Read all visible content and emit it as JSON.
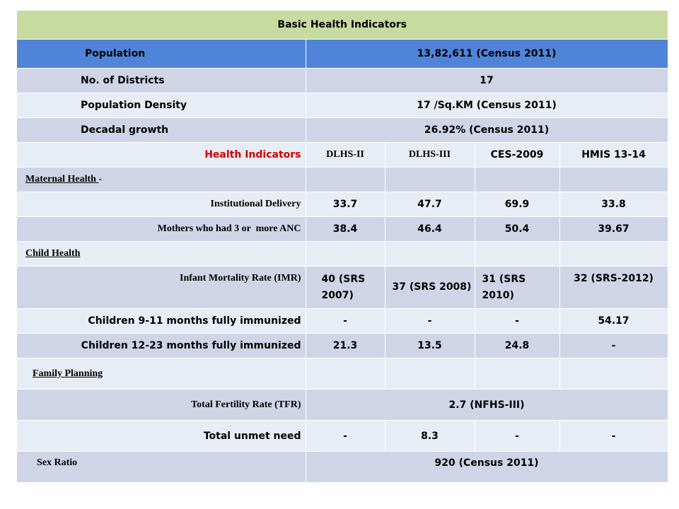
{
  "title": "Basic Health Indicators",
  "header": {
    "label": "Population",
    "value": "13,82,611 (Census 2011)"
  },
  "basic_rows": [
    {
      "label": "No. of Districts",
      "value": "17"
    },
    {
      "label": "Population Density",
      "value": "17 /Sq.KM (Census 2011)"
    },
    {
      "label": "Decadal growth",
      "value": "26.92% (Census 2011)"
    }
  ],
  "indicators_header": {
    "label": "Health Indicators",
    "columns": [
      "DLHS-II",
      "DLHS-III",
      "CES-2009",
      "HMIS 13-14"
    ]
  },
  "sections": {
    "maternal": {
      "label": "Maternal Health ",
      "suffix": "-"
    },
    "child": {
      "label": "Child Health"
    },
    "family": {
      "label": "Family Planning"
    }
  },
  "rows": {
    "institutional_delivery": {
      "label": "Institutional Delivery",
      "values": [
        "33.7",
        "47.7",
        "69.9",
        "33.8"
      ]
    },
    "anc": {
      "label": "Mothers who had 3 or  more ANC",
      "values": [
        "38.4",
        "46.4",
        "50.4",
        "39.67"
      ]
    },
    "imr": {
      "label": "Infant Mortality Rate (IMR)",
      "values": [
        "40 (SRS 2007)",
        "37 (SRS 2008)",
        "31 (SRS 2010)",
        "32 (SRS-2012)"
      ]
    },
    "immunized_9_11": {
      "label": "Children 9-11 months fully immunized",
      "values": [
        "-",
        "-",
        "-",
        "54.17"
      ]
    },
    "immunized_12_23": {
      "label": "Children 12-23 months fully immunized",
      "values": [
        "21.3",
        "13.5",
        "24.8",
        "-"
      ]
    },
    "tfr": {
      "label": "Total Fertility Rate (TFR)",
      "value": "2.7 (NFHS-III)"
    },
    "unmet_need": {
      "label": "Total unmet need",
      "values": [
        "-",
        "8.3",
        "-",
        "-"
      ]
    },
    "sex_ratio": {
      "label": "Sex Ratio",
      "value": "920 (Census 2011)"
    }
  },
  "colors": {
    "title_band": "#c7dba0",
    "title_text": "#c00000",
    "header_band": "#4f84d9",
    "row_dark": "#cfd5e6",
    "row_light": "#e8ecf4",
    "indicator_label": "#d00000"
  }
}
